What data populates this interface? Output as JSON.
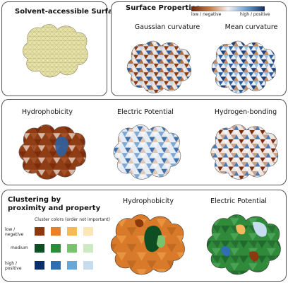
{
  "panels": {
    "surface": {
      "title": "Solvent-accessible Surface"
    },
    "properties": {
      "title": "Surface Properties",
      "colorbar_low": "low / negative",
      "colorbar_high": "high / positive",
      "maps": [
        "Gaussian curvature",
        "Mean curvature",
        "Hydrophobicity",
        "Electric Potential",
        "Hydrogen-bonding"
      ]
    },
    "clustering": {
      "title_line1": "Clustering by",
      "title_line2": "proximity and property",
      "legend_title": "Cluster colors (order not important)",
      "rows": [
        {
          "label": "low / negative",
          "colors": [
            "#8b3a0e",
            "#e8812a",
            "#f4b95a",
            "#fbe6b4"
          ]
        },
        {
          "label": "medium",
          "colors": [
            "#0f4d22",
            "#2e8b3a",
            "#79c26e",
            "#cdeac3"
          ]
        },
        {
          "label": "high / positive",
          "colors": [
            "#0b2f6a",
            "#2f6fb0",
            "#6aa7d6",
            "#c6dcef"
          ]
        }
      ],
      "maps": [
        "Hydrophobicity",
        "Electric Potential"
      ]
    }
  },
  "colors": {
    "surface_fill": "#e8e3a6",
    "low": "#7a2a0c",
    "mid": "#f2f2f2",
    "high": "#1a4d8a"
  }
}
